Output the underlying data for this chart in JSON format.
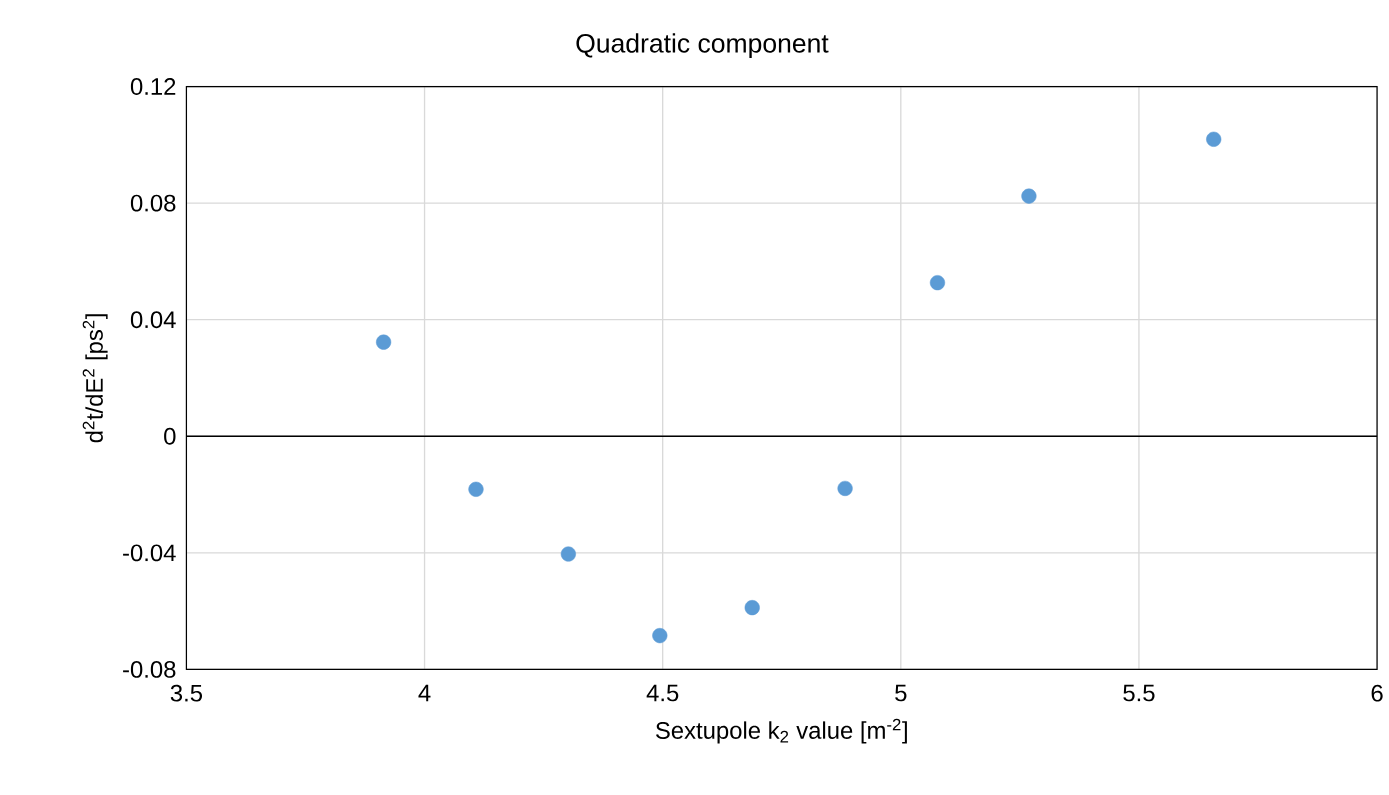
{
  "chart_data": {
    "type": "scatter",
    "title": "Quadratic component",
    "xlabel": "Sextupole k$_{2}$ value [m$^{-2}$]",
    "ylabel": "d$^{2}$t/dE$^{2}$ [ps$^{2}$]",
    "x": [
      3.914,
      4.108,
      4.302,
      4.494,
      4.688,
      4.883,
      5.077,
      5.269,
      5.657
    ],
    "series": [
      {
        "color": "#5b9bd5",
        "values": [
          0.0323,
          -0.0182,
          -0.0404,
          -0.0684,
          -0.0588,
          -0.0179,
          0.0527,
          0.0824,
          0.1019
        ]
      }
    ],
    "xlim": [
      3.5,
      6
    ],
    "ylim": [
      -0.08,
      0.12
    ],
    "xticks": [
      3.5,
      4,
      4.5,
      5,
      5.5,
      6
    ],
    "yticks": [
      -0.08,
      -0.04,
      0,
      0.04,
      0.08,
      0.12
    ],
    "ref_lines": [
      {
        "axis": "y",
        "value": 0,
        "color": "#000000"
      }
    ],
    "grid": true,
    "marker": "circle"
  }
}
